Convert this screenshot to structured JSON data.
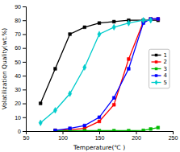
{
  "chart_data": {
    "type": "line",
    "xlabel": "Temperature(℃ )",
    "ylabel": "Volatilization Quality(wt.%)",
    "series": [
      {
        "name": "1",
        "color": "#000000",
        "marker": "square",
        "x": [
          70,
          90,
          110,
          130,
          150,
          170,
          190,
          210,
          230
        ],
        "values": [
          20,
          45,
          70,
          75,
          78,
          79,
          80,
          80,
          80
        ]
      },
      {
        "name": "2",
        "color": "#ff0000",
        "marker": "square",
        "x": [
          90,
          110,
          130,
          150,
          170,
          190,
          210,
          220,
          230
        ],
        "values": [
          0.5,
          1,
          2,
          7,
          19,
          52,
          79,
          81,
          81
        ]
      },
      {
        "name": "3",
        "color": "#00bb00",
        "marker": "square",
        "x": [
          90,
          110,
          130,
          150,
          170,
          190,
          210,
          220,
          230
        ],
        "values": [
          0.2,
          0.2,
          0.3,
          0.3,
          0.3,
          0.3,
          0.5,
          1.5,
          2.5
        ]
      },
      {
        "name": "4",
        "color": "#0000ff",
        "marker": "square",
        "x": [
          90,
          110,
          130,
          150,
          170,
          190,
          210,
          220,
          230
        ],
        "values": [
          0.5,
          2,
          4,
          10,
          24,
          45,
          78,
          81,
          81
        ]
      },
      {
        "name": "5",
        "color": "#00cccc",
        "marker": "diamond",
        "x": [
          70,
          90,
          110,
          130,
          150,
          170,
          190,
          210,
          220
        ],
        "values": [
          6,
          15,
          27,
          46,
          70,
          75,
          78,
          80,
          80
        ]
      }
    ],
    "xlim": [
      50,
      250
    ],
    "ylim": [
      0,
      90
    ],
    "xticks": [
      50,
      100,
      150,
      200,
      250
    ],
    "yticks": [
      0,
      10,
      20,
      30,
      40,
      50,
      60,
      70,
      80,
      90
    ],
    "grid": false,
    "legend": "center right"
  }
}
